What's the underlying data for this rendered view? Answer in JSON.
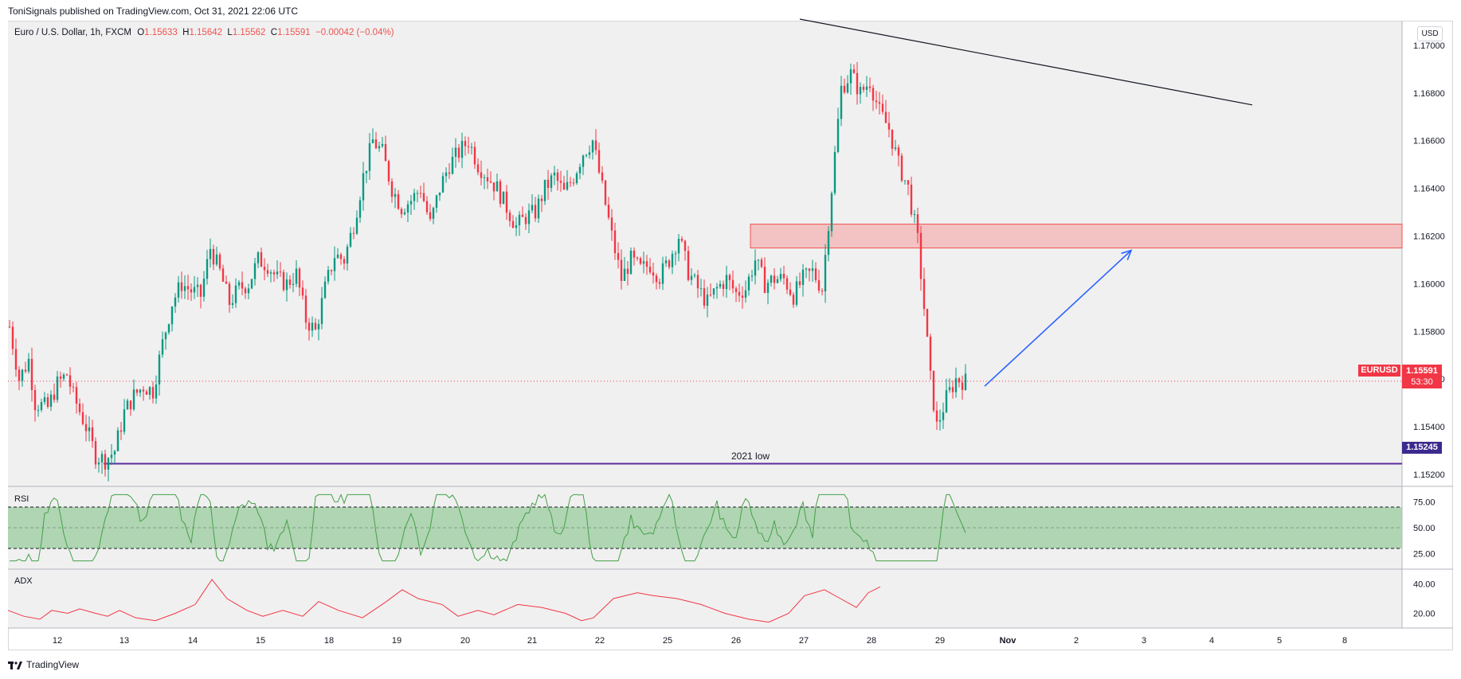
{
  "header": {
    "published": "ToniSignals published on TradingView.com, Oct 31, 2021 22:06 UTC"
  },
  "legend": {
    "symbol": "Euro / U.S. Dollar, 1h, FXCM",
    "o_label": "O",
    "o": "1.15633",
    "h_label": "H",
    "h": "1.15642",
    "l_label": "L",
    "l": "1.15562",
    "c_label": "C",
    "c": "1.15591",
    "change": "−0.00042 (−0.04%)"
  },
  "currency": "USD",
  "price_tag": {
    "symbol": "EURUSD",
    "value": "1.15591",
    "countdown": "53:30"
  },
  "low_tag": "1.15245",
  "annotation": {
    "low_label": "2021 low"
  },
  "rsi_label": "RSI",
  "adx_label": "ADX",
  "footer": {
    "brand": "TradingView"
  },
  "colors": {
    "up": "#089981",
    "down": "#f23645",
    "zone_fill": "#f4b6b6",
    "zone_border": "#ef5350",
    "low_line": "#5b2c9e",
    "arrow": "#2962ff",
    "rsi_band": "#a5d0a8",
    "rsi_line": "#43a047",
    "adx_line": "#f23645"
  },
  "chart_data": {
    "type": "candlestick",
    "instrument": "Euro / U.S. Dollar",
    "timeframe": "1h",
    "ylim": [
      1.1515,
      1.171
    ],
    "y_ticks": [
      "1.17000",
      "1.16800",
      "1.16600",
      "1.16400",
      "1.16200",
      "1.16000",
      "1.15800",
      "1.15600",
      "1.15400",
      "1.15200"
    ],
    "x_ticks": [
      "12",
      "13",
      "14",
      "15",
      "18",
      "19",
      "20",
      "21",
      "22",
      "25",
      "26",
      "27",
      "28",
      "29",
      "Nov",
      "2",
      "3",
      "4",
      "5",
      "8"
    ],
    "price_path": [
      [
        0,
        1.1582
      ],
      [
        3,
        1.156
      ],
      [
        6,
        1.1568
      ],
      [
        8,
        1.155
      ],
      [
        12,
        1.1548
      ],
      [
        15,
        1.1558
      ],
      [
        18,
        1.1562
      ],
      [
        20,
        1.1553
      ],
      [
        24,
        1.154
      ],
      [
        27,
        1.1528
      ],
      [
        30,
        1.1526
      ],
      [
        33,
        1.153
      ],
      [
        36,
        1.1546
      ],
      [
        39,
        1.1553
      ],
      [
        42,
        1.1557
      ],
      [
        45,
        1.1555
      ],
      [
        48,
        1.1575
      ],
      [
        51,
        1.1592
      ],
      [
        54,
        1.16
      ],
      [
        57,
        1.1597
      ],
      [
        60,
        1.1595
      ],
      [
        63,
        1.1615
      ],
      [
        66,
        1.1605
      ],
      [
        69,
        1.1592
      ],
      [
        72,
        1.1598
      ],
      [
        75,
        1.16
      ],
      [
        78,
        1.161
      ],
      [
        81,
        1.1608
      ],
      [
        84,
        1.1602
      ],
      [
        87,
        1.16
      ],
      [
        90,
        1.1604
      ],
      [
        93,
        1.1585
      ],
      [
        96,
        1.158
      ],
      [
        99,
        1.1598
      ],
      [
        102,
        1.1612
      ],
      [
        105,
        1.161
      ],
      [
        108,
        1.1625
      ],
      [
        111,
        1.1645
      ],
      [
        114,
        1.166
      ],
      [
        117,
        1.1655
      ],
      [
        120,
        1.164
      ],
      [
        123,
        1.1632
      ],
      [
        126,
        1.1635
      ],
      [
        129,
        1.164
      ],
      [
        132,
        1.1625
      ],
      [
        135,
        1.164
      ],
      [
        138,
        1.165
      ],
      [
        141,
        1.1655
      ],
      [
        144,
        1.166
      ],
      [
        147,
        1.165
      ],
      [
        150,
        1.1645
      ],
      [
        153,
        1.164
      ],
      [
        156,
        1.1632
      ],
      [
        159,
        1.1624
      ],
      [
        162,
        1.1628
      ],
      [
        165,
        1.163
      ],
      [
        168,
        1.164
      ],
      [
        171,
        1.1645
      ],
      [
        174,
        1.1638
      ],
      [
        177,
        1.1645
      ],
      [
        180,
        1.1655
      ],
      [
        183,
        1.166
      ],
      [
        186,
        1.164
      ],
      [
        189,
        1.162
      ],
      [
        192,
        1.1602
      ],
      [
        195,
        1.161
      ],
      [
        198,
        1.1606
      ],
      [
        201,
        1.1608
      ],
      [
        204,
        1.1603
      ],
      [
        207,
        1.161
      ],
      [
        210,
        1.162
      ],
      [
        213,
        1.1605
      ],
      [
        216,
        1.1598
      ],
      [
        219,
        1.1592
      ],
      [
        222,
        1.1598
      ],
      [
        225,
        1.1602
      ],
      [
        228,
        1.1596
      ],
      [
        231,
        1.1598
      ],
      [
        234,
        1.161
      ],
      [
        237,
        1.16
      ],
      [
        240,
        1.1602
      ],
      [
        243,
        1.1602
      ],
      [
        246,
        1.1595
      ],
      [
        249,
        1.1602
      ],
      [
        252,
        1.1605
      ],
      [
        255,
        1.1598
      ],
      [
        258,
        1.164
      ],
      [
        261,
        1.1682
      ],
      [
        264,
        1.1688
      ],
      [
        267,
        1.168
      ],
      [
        270,
        1.1685
      ],
      [
        273,
        1.1672
      ],
      [
        276,
        1.1665
      ],
      [
        279,
        1.165
      ],
      [
        282,
        1.164
      ],
      [
        285,
        1.1618
      ],
      [
        287,
        1.159
      ],
      [
        289,
        1.156
      ],
      [
        291,
        1.154
      ],
      [
        294,
        1.1552
      ],
      [
        297,
        1.156
      ],
      [
        300,
        1.1559
      ]
    ],
    "horizontal_levels": [
      {
        "label": "2021 low",
        "value": 1.15245
      }
    ],
    "resistance_zone": {
      "from": 1.1615,
      "to": 1.1625
    },
    "trendline": {
      "from_time": 248,
      "from_price": 1.1711,
      "to_time": 390,
      "to_price": 1.1675
    },
    "forecast_arrow": {
      "from_time": 306,
      "from_price": 1.1557,
      "to_time": 352,
      "to_price": 1.1614
    },
    "last_price": 1.15591,
    "rsi": {
      "ylim": [
        10,
        90
      ],
      "ticks": [
        "75.00",
        "50.00",
        "25.00"
      ],
      "band": [
        30,
        70
      ]
    },
    "adx": {
      "ylim": [
        10,
        50
      ],
      "ticks": [
        "40.00",
        "20.00"
      ]
    }
  }
}
